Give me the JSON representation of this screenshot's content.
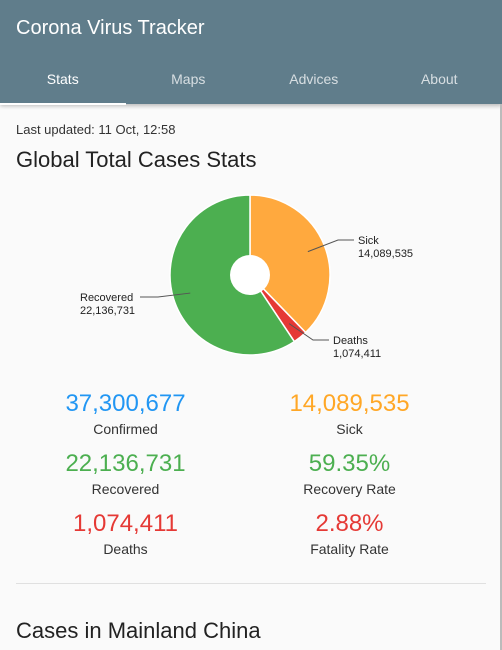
{
  "app": {
    "title": "Corona Virus Tracker"
  },
  "tabs": [
    {
      "label": "Stats",
      "active": true
    },
    {
      "label": "Maps",
      "active": false
    },
    {
      "label": "Advices",
      "active": false
    },
    {
      "label": "About",
      "active": false
    }
  ],
  "stats_page": {
    "last_updated": "Last updated: 11 Oct, 12:58",
    "global_title": "Global Total Cases Stats",
    "china_title": "Cases in Mainland China"
  },
  "chart_data": {
    "type": "pie",
    "donut": true,
    "slices": [
      {
        "label": "Sick",
        "value": 14089535,
        "value_text": "14,089,535",
        "color": "#ffa93e"
      },
      {
        "label": "Deaths",
        "value": 1074411,
        "value_text": "1,074,411",
        "color": "#e53935"
      },
      {
        "label": "Recovered",
        "value": 22136731,
        "value_text": "22,136,731",
        "color": "#4caf50"
      }
    ]
  },
  "stats": {
    "confirmed": {
      "value": "37,300,677",
      "label": "Confirmed",
      "color": "#2196f3"
    },
    "sick": {
      "value": "14,089,535",
      "label": "Sick",
      "color": "#ffa726"
    },
    "recovered": {
      "value": "22,136,731",
      "label": "Recovered",
      "color": "#4caf50"
    },
    "recovery_rate": {
      "value": "59.35%",
      "label": "Recovery Rate",
      "color": "#4caf50"
    },
    "deaths": {
      "value": "1,074,411",
      "label": "Deaths",
      "color": "#e53935"
    },
    "fatality_rate": {
      "value": "2.88%",
      "label": "Fatality Rate",
      "color": "#e53935"
    }
  }
}
